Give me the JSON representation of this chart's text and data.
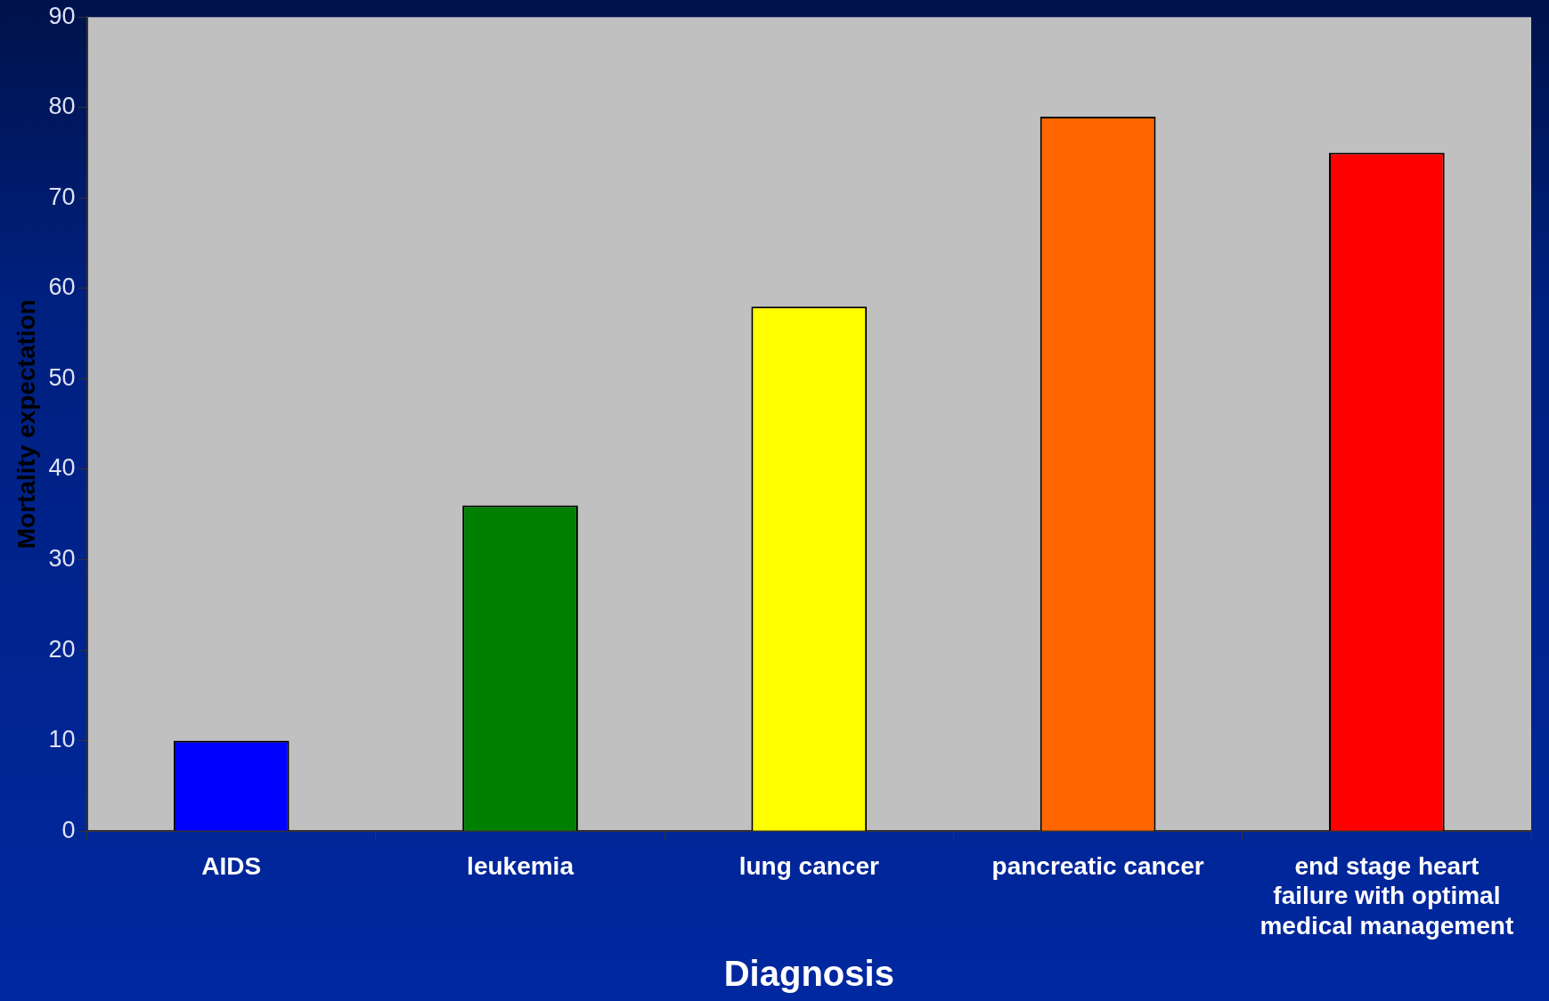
{
  "chart_data": {
    "type": "bar",
    "xlabel": "Diagnosis",
    "ylabel": "Mortality expectation",
    "categories": [
      "AIDS",
      "leukemia",
      "lung cancer",
      "pancreatic cancer",
      "end stage heart failure with optimal medical management"
    ],
    "values": [
      10,
      36,
      58,
      79,
      75
    ],
    "colors": [
      "#0000ff",
      "#008000",
      "#ffff00",
      "#ff6600",
      "#ff0000"
    ],
    "ylim": [
      0,
      90
    ],
    "yticks": [
      0,
      10,
      20,
      30,
      40,
      50,
      60,
      70,
      80,
      90
    ],
    "grid": false,
    "legend": false
  }
}
